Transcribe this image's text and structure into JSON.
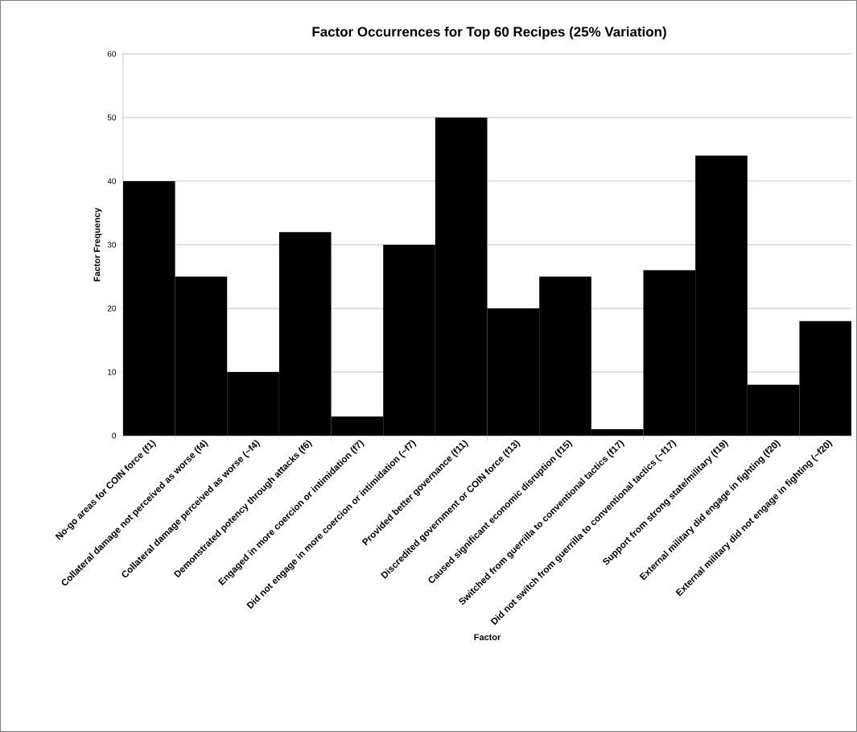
{
  "chart_data": {
    "type": "bar",
    "title": "Factor Occurrences for Top 60 Recipes (25% Variation)",
    "xlabel": "Factor",
    "ylabel": "Factor Frequency",
    "categories": [
      "No-go areas for COIN force (f1)",
      "Collateral damage not perceived as worse (f4)",
      "Collateral damage perceived as worse (~f4)",
      "Demonstrated potency through attacks (f6)",
      "Engaged in more coercion or intimidation (f7)",
      "Did not engage in more coercion or intimidation (~f7)",
      "Provided better governance (f11)",
      "Discredited government or COIN force (f13)",
      "Caused significant economic disruption (f15)",
      "Switched from guerrilla to conventional tactics (f17)",
      "Did not switch from guerrilla to conventional tactics (~f17)",
      "Support from strong state/military (f19)",
      "External military did engage in fighting (f20)",
      "External military did not engage in fighting (~f20)"
    ],
    "values": [
      40,
      25,
      10,
      32,
      3,
      30,
      50,
      20,
      25,
      1,
      26,
      44,
      8,
      18
    ],
    "color": "#000000",
    "ylim": [
      0,
      60
    ],
    "yticks": [
      0,
      10,
      20,
      30,
      40,
      50,
      60
    ],
    "grid": "y"
  }
}
